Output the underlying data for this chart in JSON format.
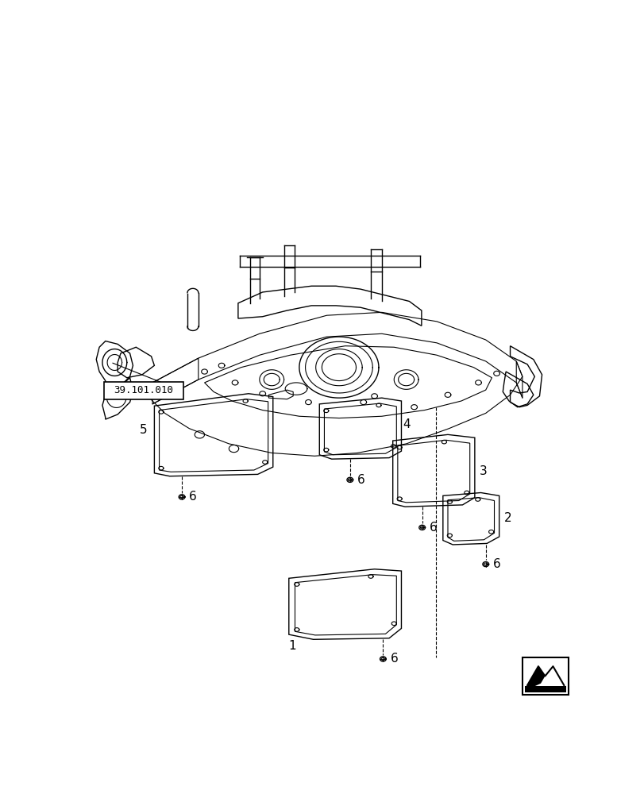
{
  "title": "",
  "background_color": "#ffffff",
  "line_color": "#000000",
  "label_font_size": 11,
  "ref_label": "39.101.010",
  "part_numbers": [
    "1",
    "2",
    "3",
    "4",
    "5",
    "6"
  ]
}
